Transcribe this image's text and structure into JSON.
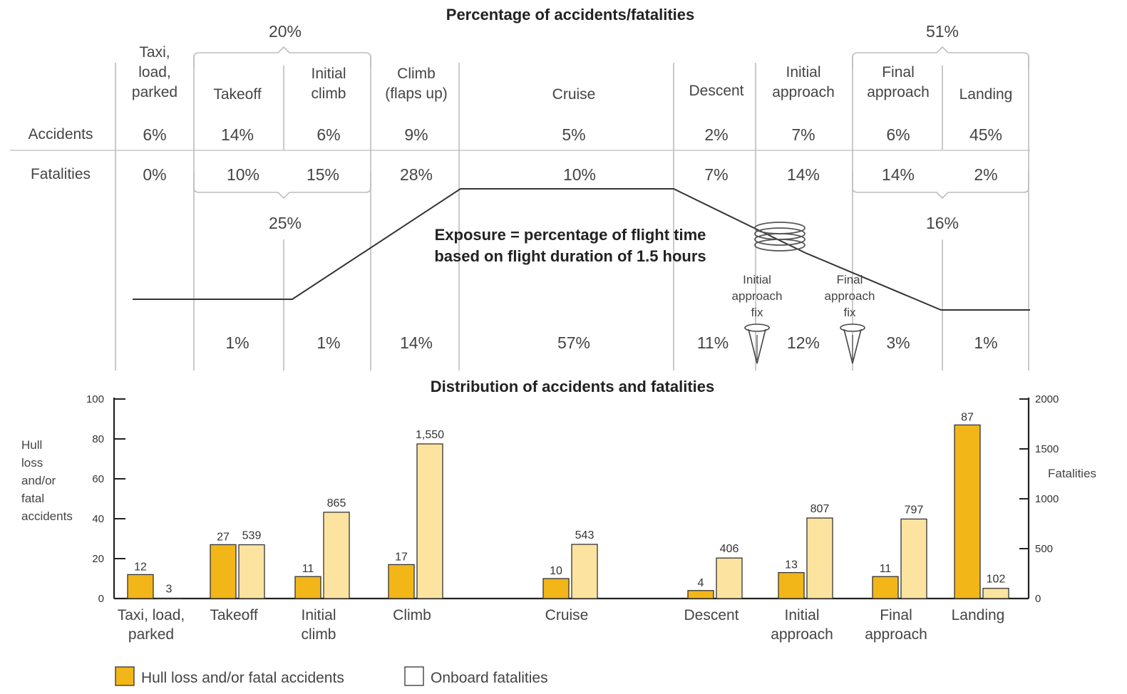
{
  "top": {
    "title": "Percentage of accidents/fatalities",
    "row_accidents": "Accidents",
    "row_fatalities": "Fatalities",
    "phases": [
      {
        "label": [
          "Taxi,",
          "load,",
          "parked"
        ],
        "accidents": "6%",
        "fatalities": "0%",
        "exposure": ""
      },
      {
        "label": [
          "Takeoff"
        ],
        "accidents": "14%",
        "fatalities": "10%",
        "exposure": "1%"
      },
      {
        "label": [
          "Initial",
          "climb"
        ],
        "accidents": "6%",
        "fatalities": "15%",
        "exposure": "1%"
      },
      {
        "label": [
          "Climb",
          "(flaps up)"
        ],
        "accidents": "9%",
        "fatalities": "28%",
        "exposure": "14%"
      },
      {
        "label": [
          "Cruise"
        ],
        "accidents": "5%",
        "fatalities": "10%",
        "exposure": "57%"
      },
      {
        "label": [
          "Descent"
        ],
        "accidents": "2%",
        "fatalities": "7%",
        "exposure": "11%"
      },
      {
        "label": [
          "Initial",
          "approach"
        ],
        "accidents": "7%",
        "fatalities": "14%",
        "exposure": "12%"
      },
      {
        "label": [
          "Final",
          "approach"
        ],
        "accidents": "6%",
        "fatalities": "14%",
        "exposure": "3%"
      },
      {
        "label": [
          "Landing"
        ],
        "accidents": "45%",
        "fatalities": "2%",
        "exposure": "1%"
      }
    ],
    "group_left": {
      "accidents": "20%",
      "fatalities": "25%"
    },
    "group_right": {
      "accidents": "51%",
      "fatalities": "16%"
    },
    "exposure_caption": [
      "Exposure = percentage of flight time",
      "based on flight duration of 1.5 hours"
    ],
    "fix_labels": [
      [
        "Initial",
        "approach",
        "fix"
      ],
      [
        "Final",
        "approach",
        "fix"
      ]
    ]
  },
  "chart_data": {
    "type": "bar",
    "title": "Distribution of accidents and fatalities",
    "categories": [
      [
        "Taxi, load,",
        "parked"
      ],
      [
        "Takeoff"
      ],
      [
        "Initial",
        "climb"
      ],
      [
        "Climb"
      ],
      [
        "Cruise"
      ],
      [
        "Descent"
      ],
      [
        "Initial",
        "approach"
      ],
      [
        "Final",
        "approach"
      ],
      [
        "Landing"
      ]
    ],
    "series": [
      {
        "name": "Hull loss and/or fatal accidents",
        "axis": "left",
        "color": "#f2b619",
        "values": [
          12,
          27,
          11,
          17,
          10,
          4,
          13,
          11,
          87
        ]
      },
      {
        "name": "Onboard fatalities",
        "axis": "right",
        "color": "#fce4a0",
        "values": [
          3,
          539,
          865,
          1550,
          543,
          406,
          807,
          797,
          102
        ],
        "labels": [
          "3",
          "539",
          "865",
          "1,550",
          "543",
          "406",
          "807",
          "797",
          "102"
        ]
      }
    ],
    "ylabel_left": [
      "Hull",
      "loss",
      "and/or",
      "fatal",
      "accidents"
    ],
    "ylabel_right": "Fatalities",
    "ylim_left": [
      0,
      100
    ],
    "yticks_left": [
      "0",
      "20",
      "40",
      "60",
      "80",
      "100"
    ],
    "ylim_right": [
      0,
      2000
    ],
    "yticks_right": [
      "0",
      "500",
      "1000",
      "1500",
      "2000"
    ],
    "legend_position": "bottom-left"
  }
}
